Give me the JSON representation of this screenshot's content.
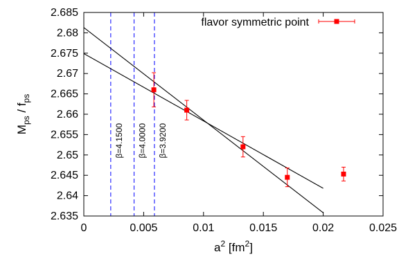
{
  "chart_data": {
    "type": "scatter",
    "xlabel": {
      "base": "a",
      "sup": "2",
      "rest": " [fm",
      "sup2": "2",
      "close": "]"
    },
    "ylabel": {
      "base": "M",
      "sub1": "ps",
      "mid": " / f",
      "sub2": "ps"
    },
    "xlim": [
      0,
      0.025
    ],
    "ylim": [
      2.635,
      2.685
    ],
    "xticks": [
      {
        "value": 0,
        "label": "0"
      },
      {
        "value": 0.005,
        "label": "0.005"
      },
      {
        "value": 0.01,
        "label": "0.01"
      },
      {
        "value": 0.015,
        "label": "0.015"
      },
      {
        "value": 0.02,
        "label": "0.02"
      },
      {
        "value": 0.025,
        "label": "0.025"
      }
    ],
    "yticks": [
      {
        "value": 2.635,
        "label": "2.635"
      },
      {
        "value": 2.64,
        "label": "2.64"
      },
      {
        "value": 2.645,
        "label": "2.645"
      },
      {
        "value": 2.65,
        "label": "2.65"
      },
      {
        "value": 2.655,
        "label": "2.655"
      },
      {
        "value": 2.66,
        "label": "2.66"
      },
      {
        "value": 2.665,
        "label": "2.665"
      },
      {
        "value": 2.67,
        "label": "2.67"
      },
      {
        "value": 2.675,
        "label": "2.675"
      },
      {
        "value": 2.68,
        "label": "2.68"
      },
      {
        "value": 2.685,
        "label": "2.685"
      }
    ],
    "legend": {
      "label": "flavor symmetric point",
      "placement": "top-right"
    },
    "series": [
      {
        "name": "flavor symmetric point",
        "color": "#ff0000",
        "points": [
          {
            "x": 0.00585,
            "y": 2.666,
            "yerr": 0.0042
          },
          {
            "x": 0.0086,
            "y": 2.661,
            "yerr": 0.0024
          },
          {
            "x": 0.0133,
            "y": 2.652,
            "yerr": 0.0025
          },
          {
            "x": 0.017,
            "y": 2.6445,
            "yerr": 0.0023
          },
          {
            "x": 0.0217,
            "y": 2.6453,
            "yerr": 0.0017
          }
        ]
      }
    ],
    "fit_lines": [
      {
        "x0": 0,
        "y0": 2.6813,
        "x1": 0.02,
        "y1": 2.6358,
        "color": "#000000"
      },
      {
        "x0": 0,
        "y0": 2.6749,
        "x1": 0.02,
        "y1": 2.6418,
        "color": "#000000"
      }
    ],
    "vlines": [
      {
        "x": 0.00225,
        "label": "β=4.1500",
        "color": "#0000ff"
      },
      {
        "x": 0.0042,
        "label": "β=4.0000",
        "color": "#0000ff"
      },
      {
        "x": 0.0059,
        "label": "β=3.9200",
        "color": "#0000ff"
      }
    ],
    "beta_label_y": 2.6535
  }
}
